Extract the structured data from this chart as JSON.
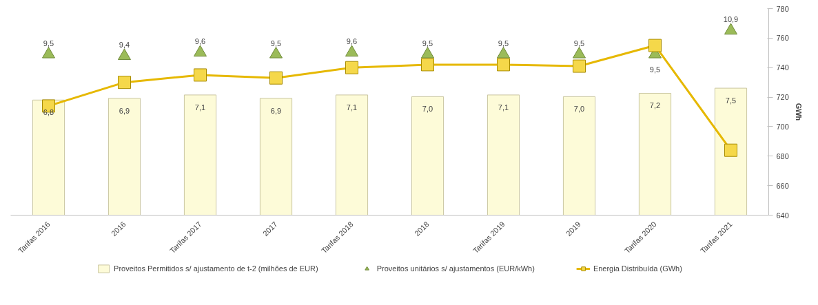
{
  "chart_data": {
    "type": "bar",
    "categories": [
      "Tarifas 2016",
      "2016",
      "Tarifas 2017",
      "2017",
      "Tarifas 2018",
      "2018",
      "Tarifas 2019",
      "2019",
      "Tarifas 2020",
      "Tarifas 2021"
    ],
    "ylim": [
      0,
      12.2
    ],
    "y2lim": [
      640,
      780
    ],
    "y2ticks": [
      640,
      660,
      680,
      700,
      720,
      740,
      760,
      780
    ],
    "y2label": "GWh",
    "legend": "bottom",
    "grid": false,
    "series": [
      {
        "name": "Proveitos Permitidos s/ ajustamento de t-2 (milhões de EUR)",
        "color": "#fdfbd8",
        "values": [
          6.8,
          6.9,
          7.1,
          6.9,
          7.1,
          7.0,
          7.1,
          7.0,
          7.2,
          7.5
        ],
        "value_labels": [
          "6,8",
          "6,9",
          "7,1",
          "6,9",
          "7,1",
          "7,0",
          "7,1",
          "7,0",
          "7,2",
          "7,5"
        ]
      },
      {
        "name": "Proveitos unitários s/ ajustamentos (EUR/kWh)",
        "type": "scatter",
        "marker": "triangle",
        "color": "#9bbb59",
        "values": [
          9.5,
          9.4,
          9.6,
          9.5,
          9.6,
          9.5,
          9.5,
          9.5,
          9.5,
          10.9
        ],
        "value_labels": [
          "9,5",
          "9,4",
          "9,6",
          "9,5",
          "9,6",
          "9,5",
          "9,5",
          "9,5",
          "9,5",
          "10,9"
        ]
      },
      {
        "name": "Energia Distribuída (GWh)",
        "type": "line",
        "marker": "square",
        "axis": "y2",
        "color": "#e6b800",
        "values": [
          714,
          730,
          735,
          733,
          740,
          742,
          742,
          741,
          755,
          684
        ]
      }
    ]
  }
}
